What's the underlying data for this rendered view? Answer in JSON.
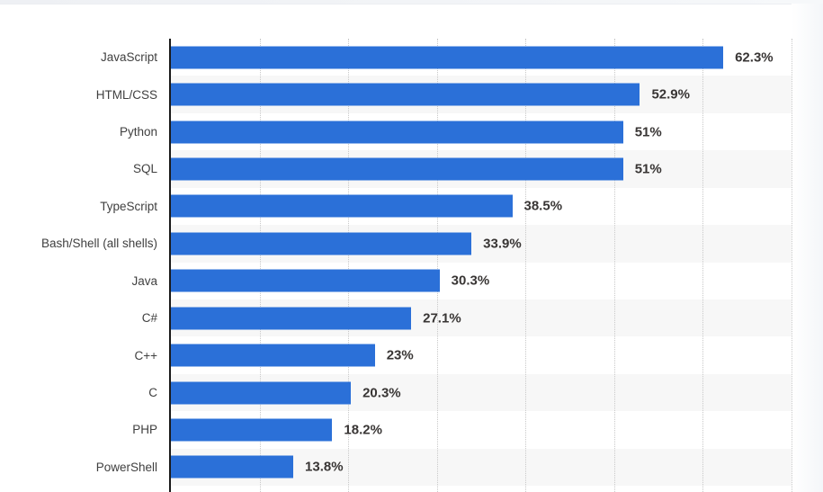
{
  "chart_data": {
    "type": "bar",
    "orientation": "horizontal",
    "title": "",
    "xlabel": "",
    "ylabel": "",
    "xlim": [
      0,
      70
    ],
    "gridline_pcts": [
      10,
      20,
      30,
      40,
      50,
      60,
      70
    ],
    "grid_style": "dotted-vertical",
    "legend": "none",
    "categories": [
      "JavaScript",
      "HTML/CSS",
      "Python",
      "SQL",
      "TypeScript",
      "Bash/Shell (all shells)",
      "Java",
      "C#",
      "C++",
      "C",
      "PHP",
      "PowerShell"
    ],
    "values": [
      62.3,
      52.9,
      51,
      51,
      38.5,
      33.9,
      30.3,
      27.1,
      23,
      20.3,
      18.2,
      13.8
    ],
    "display_values": [
      "62.3%",
      "52.9%",
      "51%",
      "51%",
      "38.5%",
      "33.9%",
      "30.3%",
      "27.1%",
      "23%",
      "20.3%",
      "18.2%",
      "13.8%"
    ],
    "colors": {
      "bar": "#2b70d8",
      "stripe": "#f7f7f7",
      "axis": "#1a1a1a",
      "grid": "#c9c9c9",
      "category_label": "#404040",
      "value_label": "#383534"
    }
  }
}
